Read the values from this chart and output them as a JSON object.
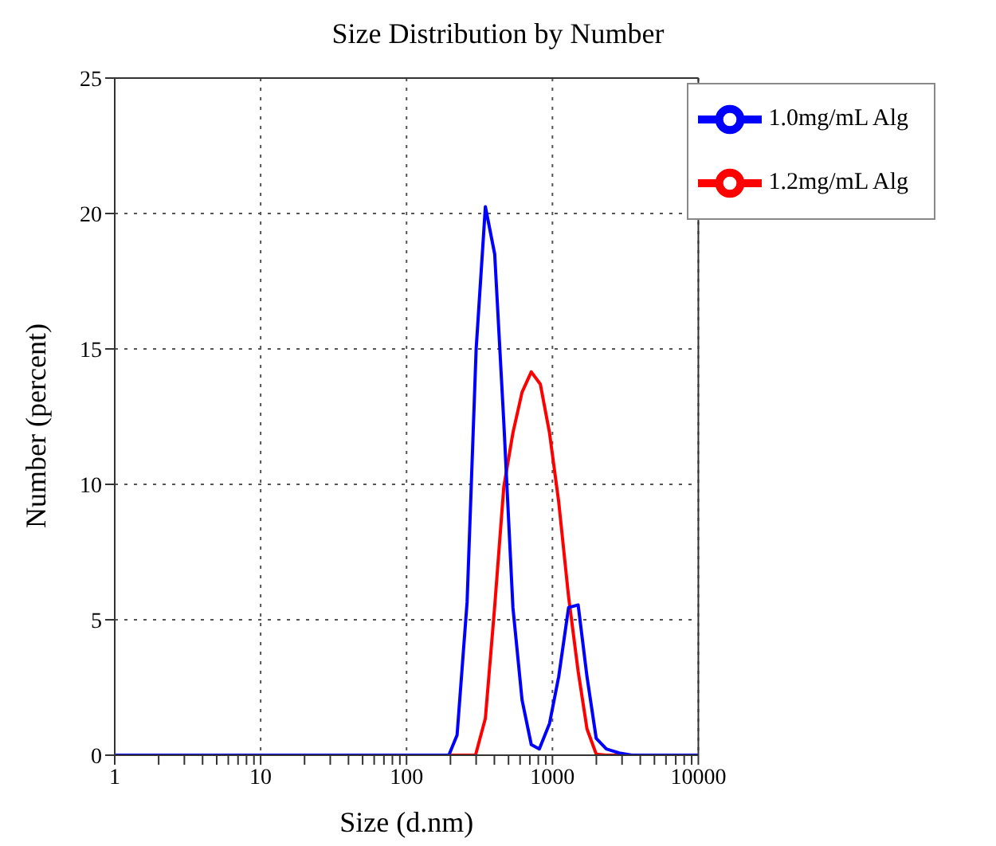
{
  "chart_data": {
    "type": "line",
    "title": "Size Distribution by Number",
    "xlabel": "Size (d.nm)",
    "ylabel": "Number (percent)",
    "log": "x",
    "xlim": [
      1,
      10000
    ],
    "xticks": [
      1,
      {
        "value": 2,
        "label": null
      },
      {
        "value": 3,
        "label": null
      },
      {
        "value": 4,
        "label": null
      },
      {
        "value": 5,
        "label": null
      },
      {
        "value": 6,
        "label": null
      },
      {
        "value": 7,
        "label": null
      },
      {
        "value": 8,
        "label": null
      },
      {
        "value": 9,
        "label": null
      },
      10,
      {
        "value": 20,
        "label": null
      },
      {
        "value": 30,
        "label": null
      },
      {
        "value": 40,
        "label": null
      },
      {
        "value": 50,
        "label": null
      },
      {
        "value": 60,
        "label": null
      },
      {
        "value": 70,
        "label": null
      },
      {
        "value": 80,
        "label": null
      },
      {
        "value": 90,
        "label": null
      },
      100,
      {
        "value": 200,
        "label": null
      },
      {
        "value": 300,
        "label": null
      },
      {
        "value": 400,
        "label": null
      },
      {
        "value": 500,
        "label": null
      },
      {
        "value": 600,
        "label": null
      },
      {
        "value": 700,
        "label": null
      },
      {
        "value": 800,
        "label": null
      },
      {
        "value": 900,
        "label": null
      },
      1000,
      {
        "value": 2000,
        "label": null
      },
      {
        "value": 3000,
        "label": null
      },
      {
        "value": 4000,
        "label": null
      },
      {
        "value": 5000,
        "label": null
      },
      {
        "value": 6000,
        "label": null
      },
      {
        "value": 7000,
        "label": null
      },
      {
        "value": 8000,
        "label": null
      },
      {
        "value": 9000,
        "label": null
      },
      10000
    ],
    "ylim": [
      0,
      25
    ],
    "yticks": [
      0,
      5,
      10,
      15,
      20,
      25
    ],
    "grid": true,
    "legend": "top right",
    "marker": "none",
    "line_style": "solid",
    "series": [
      {
        "name": "1.2mg/mL Alg",
        "color": "#ff0000",
        "x": [
          1,
          100,
          297,
          347,
          402,
          464,
          536,
          619,
          716,
          826,
          955,
          1104,
          1290,
          1500,
          1725,
          1995,
          2340,
          10000
        ],
        "values": [
          0,
          0,
          0,
          1.36,
          5.5,
          9.9,
          11.9,
          13.4,
          14.15,
          13.7,
          11.9,
          9.35,
          5.85,
          3.1,
          0.97,
          0.04,
          0,
          0
        ]
      },
      {
        "name": "1.0mg/mL Alg",
        "color": "#0000ff",
        "x": [
          1,
          100,
          195,
          222,
          260,
          300,
          347,
          402,
          464,
          536,
          619,
          716,
          813,
          955,
          1104,
          1290,
          1500,
          1725,
          1995,
          2340,
          2865,
          3500,
          10000
        ],
        "values": [
          0,
          0,
          0,
          0.74,
          5.65,
          15,
          20.25,
          18.5,
          12.3,
          5.45,
          2.04,
          0.39,
          0.23,
          1.17,
          2.9,
          5.45,
          5.55,
          2.9,
          0.62,
          0.23,
          0.08,
          0,
          0
        ]
      }
    ]
  }
}
